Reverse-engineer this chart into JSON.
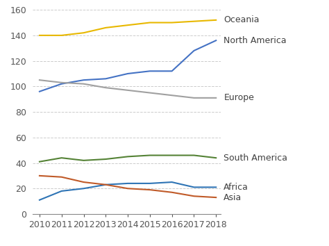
{
  "years": [
    2010,
    2011,
    2012,
    2013,
    2014,
    2015,
    2016,
    2017,
    2018
  ],
  "series": {
    "Oceania": [
      140,
      140,
      142,
      146,
      148,
      150,
      150,
      151,
      152
    ],
    "North America": [
      96,
      102,
      105,
      106,
      110,
      112,
      112,
      128,
      136
    ],
    "Europe": [
      105,
      103,
      102,
      99,
      97,
      95,
      93,
      91,
      91
    ],
    "South America": [
      41,
      44,
      42,
      43,
      45,
      46,
      46,
      46,
      44
    ],
    "Africa": [
      11,
      18,
      20,
      23,
      24,
      24,
      25,
      21,
      21
    ],
    "Asia": [
      30,
      29,
      25,
      23,
      20,
      19,
      17,
      14,
      13
    ]
  },
  "colors": {
    "Oceania": "#E8B800",
    "North America": "#4472C4",
    "Europe": "#A0A0A0",
    "South America": "#548235",
    "Africa": "#2E74B5",
    "Asia": "#C05A28"
  },
  "labels": {
    "Oceania": "Oceania",
    "North America": "North America",
    "Europe": "Europe",
    "South America": "South America",
    "Africa": "Africa",
    "Asia": "Asia"
  },
  "ylim": [
    0,
    160
  ],
  "yticks": [
    0,
    20,
    40,
    60,
    80,
    100,
    120,
    140,
    160
  ],
  "background_color": "#FFFFFF",
  "grid_color": "#CCCCCC",
  "label_fontsize": 9,
  "tick_fontsize": 9
}
